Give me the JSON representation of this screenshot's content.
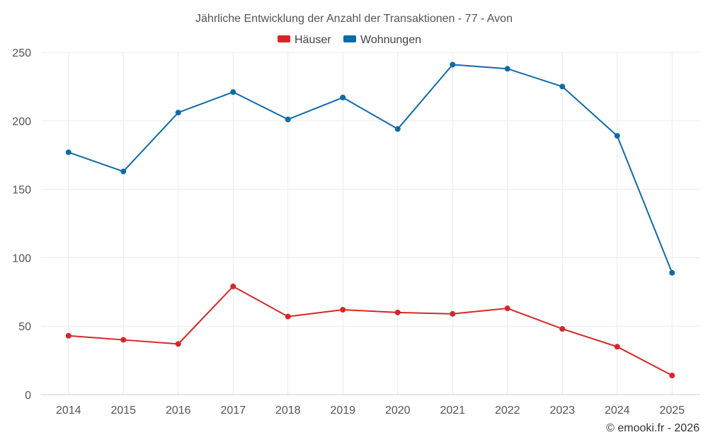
{
  "chart_data": {
    "type": "line",
    "title": "Jährliche Entwicklung der Anzahl der Transaktionen - 77 - Avon",
    "x": [
      "2014",
      "2015",
      "2016",
      "2017",
      "2018",
      "2019",
      "2020",
      "2021",
      "2022",
      "2023",
      "2024",
      "2025"
    ],
    "series": [
      {
        "name": "Häuser",
        "color": "#d62728",
        "values": [
          43,
          40,
          37,
          79,
          57,
          62,
          60,
          59,
          63,
          48,
          35,
          14
        ]
      },
      {
        "name": "Wohnungen",
        "color": "#0e6ba8",
        "values": [
          177,
          163,
          206,
          221,
          201,
          217,
          194,
          241,
          238,
          225,
          189,
          89
        ]
      }
    ],
    "yticks": [
      "0",
      "50",
      "100",
      "150",
      "200",
      "250"
    ],
    "ylim": [
      0,
      250
    ],
    "xlabel": "",
    "ylabel": "",
    "grid": true,
    "legend_position": "top-center"
  },
  "credit": "© emooki.fr - 2026"
}
